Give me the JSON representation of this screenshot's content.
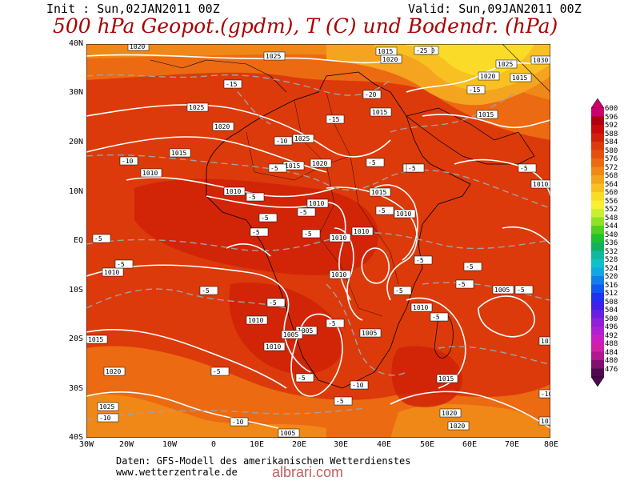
{
  "header": {
    "init": "Init : Sun,02JAN2011 00Z",
    "valid": "Valid: Sun,09JAN2011 00Z",
    "title": "500 hPa Geopot.(gpdm), T (C) und Bodendr. (hPa)"
  },
  "axes": {
    "lat_labels": [
      "40N",
      "30N",
      "20N",
      "10N",
      "EQ",
      "10S",
      "20S",
      "30S",
      "40S"
    ],
    "lon_labels": [
      "30W",
      "20W",
      "10W",
      "0",
      "10E",
      "20E",
      "30E",
      "40E",
      "50E",
      "60E",
      "70E",
      "80E"
    ]
  },
  "legend": {
    "values": [
      "600",
      "596",
      "592",
      "588",
      "584",
      "580",
      "576",
      "572",
      "568",
      "564",
      "560",
      "556",
      "552",
      "548",
      "544",
      "540",
      "536",
      "532",
      "528",
      "524",
      "520",
      "516",
      "512",
      "508",
      "504",
      "500",
      "496",
      "492",
      "488",
      "484",
      "480",
      "476"
    ],
    "colors": [
      "#c8006e",
      "#b00010",
      "#c80a0a",
      "#d02008",
      "#dc3a0a",
      "#e45010",
      "#ec6a12",
      "#f08818",
      "#f4a41e",
      "#f8c020",
      "#fadc28",
      "#f8f030",
      "#c8f030",
      "#90e028",
      "#50d020",
      "#20c030",
      "#10b060",
      "#10b8a0",
      "#10c0c8",
      "#10a8e0",
      "#1080e8",
      "#1058f0",
      "#2030f0",
      "#4020e8",
      "#6820e0",
      "#9020d8",
      "#b020d0",
      "#c820c0",
      "#d020a8",
      "#b01890",
      "#801070",
      "#500850"
    ]
  },
  "map_labels": {
    "isobars": [
      "1015",
      "1020",
      "1025",
      "1030",
      "1010",
      "1005"
    ],
    "temps": [
      "-5",
      "-10",
      "-15",
      "-20",
      "-25"
    ]
  },
  "footer": {
    "line1": "Daten: GFS-Modell des amerikanischen Wetterdienstes",
    "line2": "www.wetterzentrale.de",
    "brand": "albrari.com"
  }
}
